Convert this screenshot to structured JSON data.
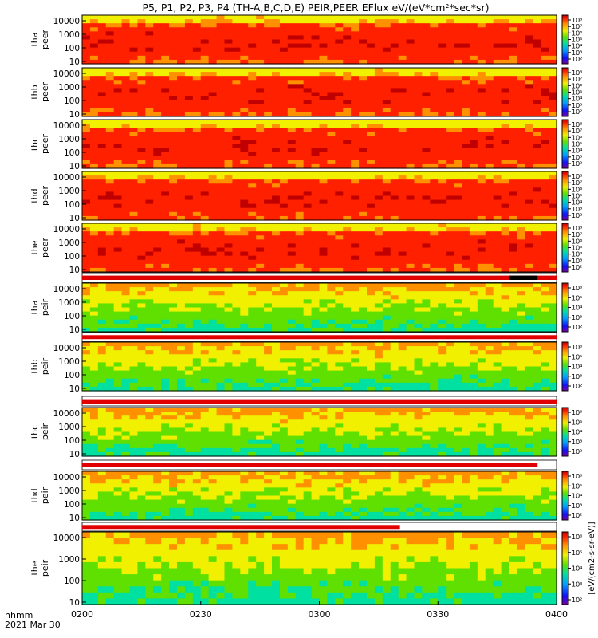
{
  "title": "P5, P1, P2, P3, P4 (TH-A,B,C,D,E) PEIR,PEER EFlux eV/(eV*cm²*sec*sr)",
  "footer": {
    "time_format": "hhmm",
    "date": "2021 Mar 30"
  },
  "colorbar_label": "[eV/(cm2-s-sr-eV)]",
  "colors": {
    "bar_red": "#e00000",
    "bar_white": "#ffffff",
    "bar_black": "#000000"
  },
  "chart_data": {
    "type": "heatmap",
    "xlabel": "",
    "x_ticks": [
      "0200",
      "0230",
      "0300",
      "0330",
      "0400"
    ],
    "x_range": [
      "02:00",
      "04:00"
    ],
    "y_scale": "log",
    "y_ticks": [
      "10",
      "100",
      "1000",
      "10000"
    ],
    "panels": [
      {
        "label_top": "tha",
        "label_bottom": "peer",
        "kind": "electron",
        "cb_ticks": [
          "10²",
          "10³",
          "10⁴",
          "10⁵",
          "10⁶",
          "10⁷",
          "10⁸"
        ]
      },
      {
        "label_top": "thb",
        "label_bottom": "peer",
        "kind": "electron",
        "cb_ticks": [
          "10²",
          "10³",
          "10⁴",
          "10⁵",
          "10⁶",
          "10⁷",
          "10⁸"
        ]
      },
      {
        "label_top": "thc",
        "label_bottom": "peer",
        "kind": "electron",
        "cb_ticks": [
          "10²",
          "10³",
          "10⁴",
          "10⁵",
          "10⁶",
          "10⁷",
          "10⁸"
        ]
      },
      {
        "label_top": "thd",
        "label_bottom": "peer",
        "kind": "electron",
        "cb_ticks": [
          "10²",
          "10³",
          "10⁴",
          "10⁵",
          "10⁶",
          "10⁷",
          "10⁸"
        ]
      },
      {
        "label_top": "the",
        "label_bottom": "peer",
        "kind": "electron",
        "cb_ticks": [
          "10²",
          "10³",
          "10⁴",
          "10⁵",
          "10⁶",
          "10⁷",
          "10⁸"
        ]
      },
      {
        "label_top": "tha",
        "label_bottom": "peir",
        "kind": "ion",
        "cb_ticks": [
          "10²",
          "10³",
          "10⁴",
          "10⁵",
          "10⁶"
        ]
      },
      {
        "label_top": "thb",
        "label_bottom": "peir",
        "kind": "ion",
        "cb_ticks": [
          "10²",
          "10³",
          "10⁴",
          "10⁵",
          "10⁶"
        ]
      },
      {
        "label_top": "thc",
        "label_bottom": "peir",
        "kind": "ion",
        "cb_ticks": [
          "10²",
          "10³",
          "10⁴",
          "10⁵",
          "10⁶"
        ]
      },
      {
        "label_top": "thd",
        "label_bottom": "peir",
        "kind": "ion",
        "cb_ticks": [
          "10²",
          "10³",
          "10⁴",
          "10⁵",
          "10⁶"
        ]
      },
      {
        "label_top": "the",
        "label_bottom": "peir",
        "kind": "ion",
        "cb_ticks": [
          "10²",
          "10³",
          "10⁴",
          "10⁵",
          "10⁶"
        ]
      }
    ]
  }
}
